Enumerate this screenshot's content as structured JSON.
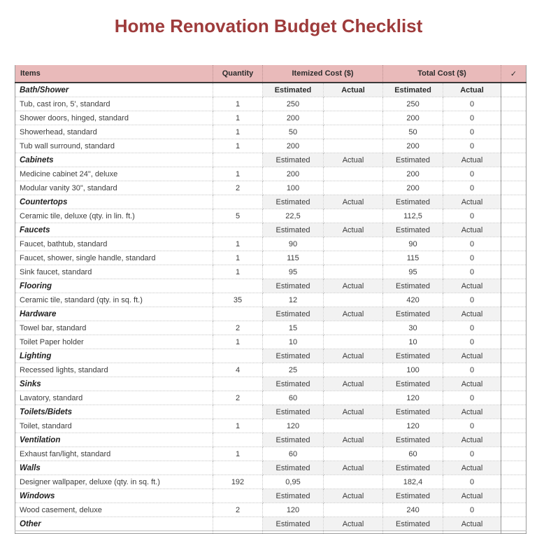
{
  "title": "Home Renovation Budget Checklist",
  "colors": {
    "title_red": "#9e3b3b",
    "header_pink": "#e9baba",
    "section_band_gray": "#f2f2f2",
    "header_underline": "#3a3a3a"
  },
  "header": {
    "items": "Items",
    "quantity": "Quantity",
    "itemized_cost": "Itemized Cost ($)",
    "total_cost": "Total Cost ($)",
    "check_icon": "✓"
  },
  "subheader": {
    "estimated": "Estimated",
    "actual": "Actual"
  },
  "sections": [
    {
      "name": "Bath/Shower",
      "bold_labels": true,
      "items": [
        {
          "name": "Tub, cast iron, 5', standard",
          "qty": "1",
          "itemized_est": "250",
          "itemized_act": "",
          "total_est": "250",
          "total_act": "0"
        },
        {
          "name": "Shower doors, hinged, standard",
          "qty": "1",
          "itemized_est": "200",
          "itemized_act": "",
          "total_est": "200",
          "total_act": "0"
        },
        {
          "name": "Showerhead, standard",
          "qty": "1",
          "itemized_est": "50",
          "itemized_act": "",
          "total_est": "50",
          "total_act": "0"
        },
        {
          "name": "Tub wall surround, standard",
          "qty": "1",
          "itemized_est": "200",
          "itemized_act": "",
          "total_est": "200",
          "total_act": "0"
        }
      ]
    },
    {
      "name": "Cabinets",
      "bold_labels": false,
      "items": [
        {
          "name": "Medicine cabinet 24\", deluxe",
          "qty": "1",
          "itemized_est": "200",
          "itemized_act": "",
          "total_est": "200",
          "total_act": "0"
        },
        {
          "name": "Modular vanity 30\", standard",
          "qty": "2",
          "itemized_est": "100",
          "itemized_act": "",
          "total_est": "200",
          "total_act": "0"
        }
      ]
    },
    {
      "name": "Countertops",
      "bold_labels": false,
      "items": [
        {
          "name": "Ceramic tile, deluxe (qty. in lin. ft.)",
          "qty": "5",
          "itemized_est": "22,5",
          "itemized_act": "",
          "total_est": "112,5",
          "total_act": "0"
        }
      ]
    },
    {
      "name": "Faucets",
      "bold_labels": false,
      "items": [
        {
          "name": "Faucet, bathtub, standard",
          "qty": "1",
          "itemized_est": "90",
          "itemized_act": "",
          "total_est": "90",
          "total_act": "0"
        },
        {
          "name": "Faucet, shower, single handle, standard",
          "qty": "1",
          "itemized_est": "115",
          "itemized_act": "",
          "total_est": "115",
          "total_act": "0"
        },
        {
          "name": "Sink faucet, standard",
          "qty": "1",
          "itemized_est": "95",
          "itemized_act": "",
          "total_est": "95",
          "total_act": "0"
        }
      ]
    },
    {
      "name": "Flooring",
      "bold_labels": false,
      "items": [
        {
          "name": "Ceramic tile, standard (qty. in sq. ft.)",
          "qty": "35",
          "itemized_est": "12",
          "itemized_act": "",
          "total_est": "420",
          "total_act": "0"
        }
      ]
    },
    {
      "name": "Hardware",
      "bold_labels": false,
      "items": [
        {
          "name": "Towel bar, standard",
          "qty": "2",
          "itemized_est": "15",
          "itemized_act": "",
          "total_est": "30",
          "total_act": "0"
        },
        {
          "name": "Toilet Paper holder",
          "qty": "1",
          "itemized_est": "10",
          "itemized_act": "",
          "total_est": "10",
          "total_act": "0"
        }
      ]
    },
    {
      "name": "Lighting",
      "bold_labels": false,
      "items": [
        {
          "name": "Recessed lights, standard",
          "qty": "4",
          "itemized_est": "25",
          "itemized_act": "",
          "total_est": "100",
          "total_act": "0"
        }
      ]
    },
    {
      "name": "Sinks",
      "bold_labels": false,
      "items": [
        {
          "name": "Lavatory, standard",
          "qty": "2",
          "itemized_est": "60",
          "itemized_act": "",
          "total_est": "120",
          "total_act": "0"
        }
      ]
    },
    {
      "name": "Toilets/Bidets",
      "bold_labels": false,
      "items": [
        {
          "name": "Toilet, standard",
          "qty": "1",
          "itemized_est": "120",
          "itemized_act": "",
          "total_est": "120",
          "total_act": "0"
        }
      ]
    },
    {
      "name": "Ventilation",
      "bold_labels": false,
      "items": [
        {
          "name": "Exhaust fan/light, standard",
          "qty": "1",
          "itemized_est": "60",
          "itemized_act": "",
          "total_est": "60",
          "total_act": "0"
        }
      ]
    },
    {
      "name": "Walls",
      "bold_labels": false,
      "items": [
        {
          "name": "Designer wallpaper, deluxe (qty. in sq. ft.)",
          "qty": "192",
          "itemized_est": "0,95",
          "itemized_act": "",
          "total_est": "182,4",
          "total_act": "0"
        }
      ]
    },
    {
      "name": "Windows",
      "bold_labels": false,
      "items": [
        {
          "name": "Wood casement, deluxe",
          "qty": "2",
          "itemized_est": "120",
          "itemized_act": "",
          "total_est": "240",
          "total_act": "0"
        }
      ]
    },
    {
      "name": "Other",
      "bold_labels": false,
      "items": []
    }
  ]
}
